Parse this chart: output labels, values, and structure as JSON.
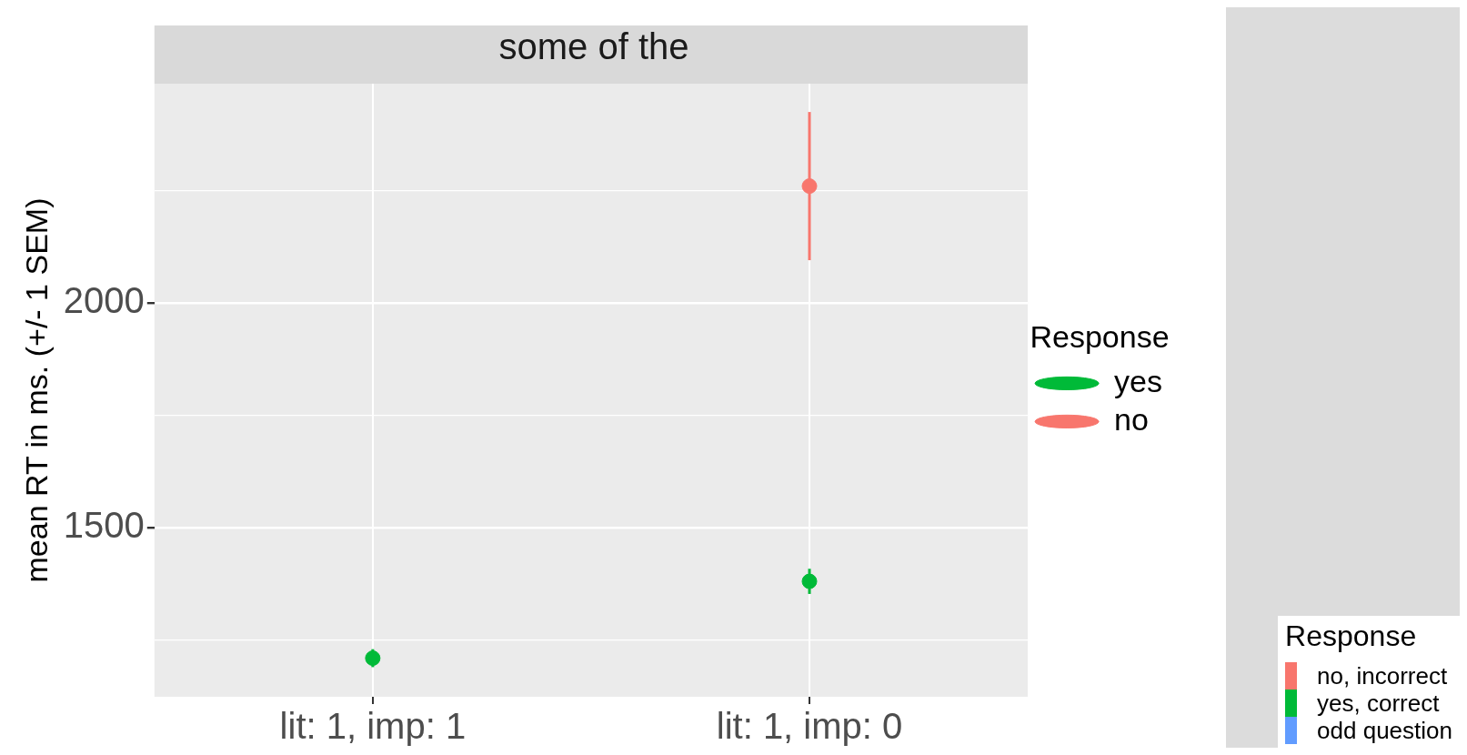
{
  "chart_data": [
    {
      "type": "scatter",
      "title": "some of the",
      "ylabel": "mean RT in ms. (+/- 1 SEM)",
      "legend_title": "Response",
      "categories": [
        "lit: 1, imp: 1",
        "lit: 1, imp: 0"
      ],
      "series": [
        {
          "name": "yes",
          "color": "#00ba38",
          "values": [
            1209,
            1380
          ],
          "errors": [
            20,
            28
          ]
        },
        {
          "name": "no",
          "color": "#f8766d",
          "values": [
            null,
            2260
          ],
          "errors": [
            null,
            165
          ]
        }
      ],
      "ylim": [
        1123,
        2488
      ],
      "yticks": [
        {
          "value": 1250,
          "label": null
        },
        1500,
        {
          "value": 1750,
          "label": null
        },
        2000,
        {
          "value": 2250,
          "label": null
        }
      ],
      "grid": true,
      "legend": "right",
      "marker": "circle"
    },
    {
      "type": "other",
      "legend_title": "Response",
      "series": [
        {
          "name": "no, incorrect",
          "color": "#f8766d"
        },
        {
          "name": "yes, correct",
          "color": "#00ba38"
        },
        {
          "name": "odd question",
          "color": "#619cff"
        }
      ]
    }
  ]
}
